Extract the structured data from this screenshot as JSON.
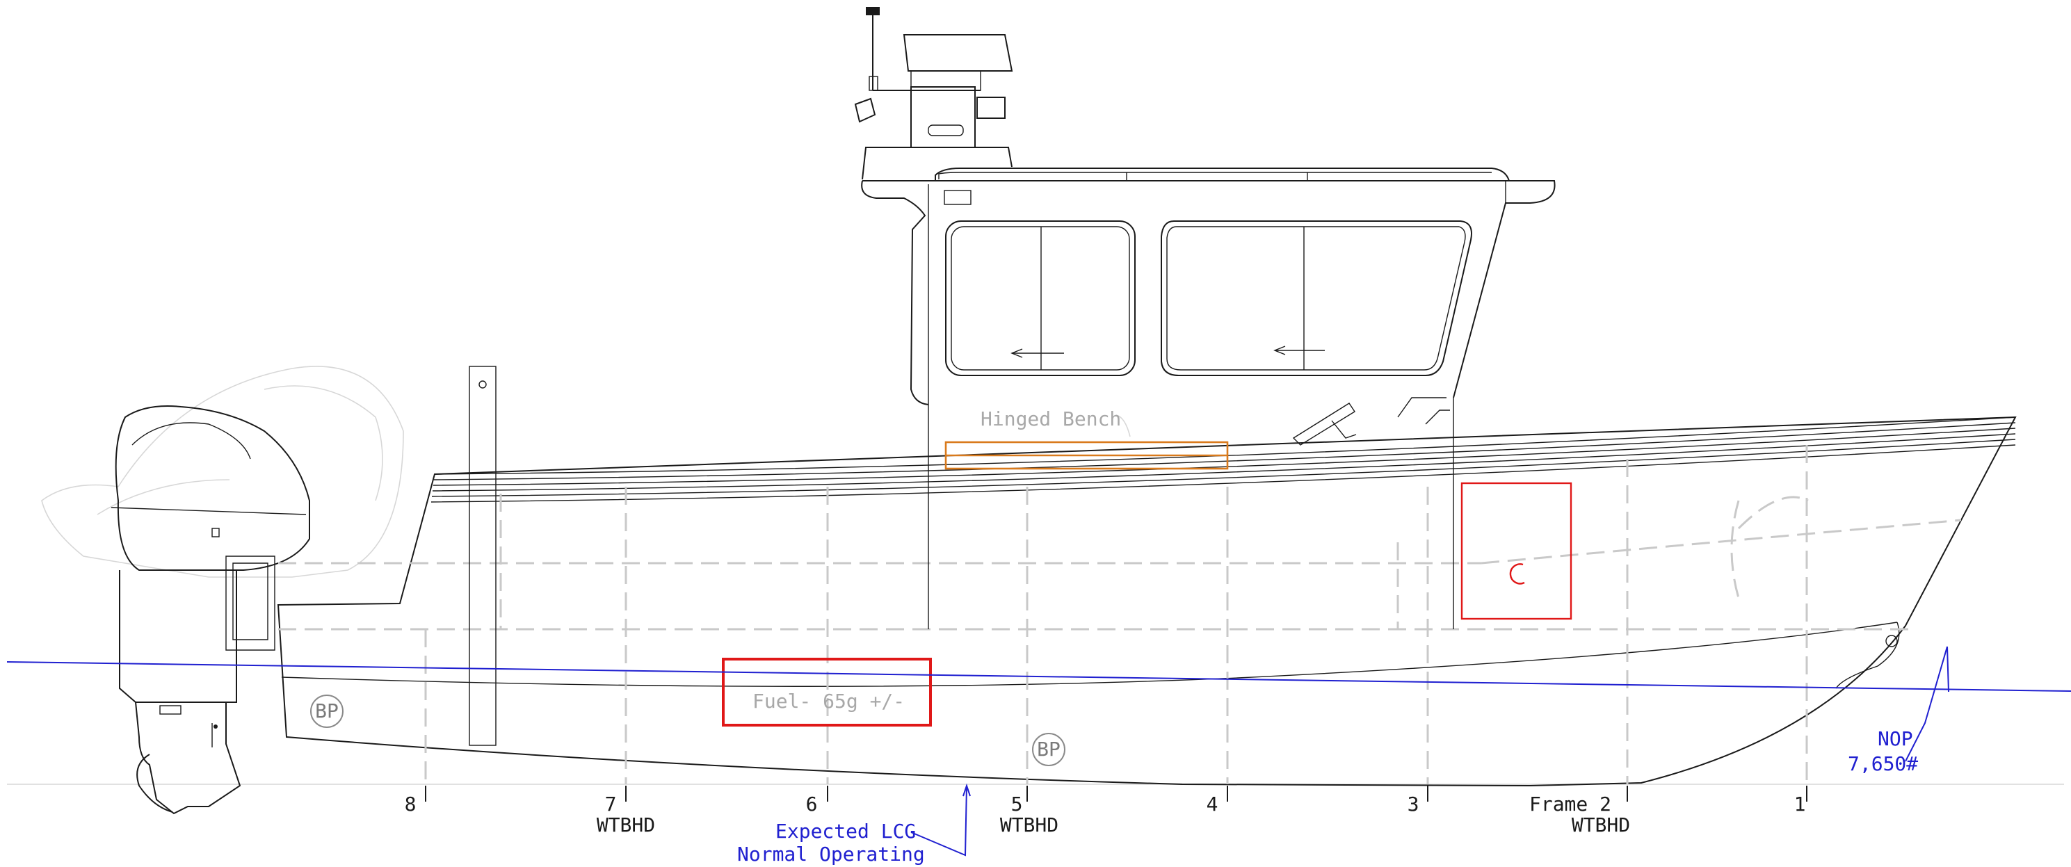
{
  "frames": [
    {
      "number": "8",
      "bulkhead": ""
    },
    {
      "number": "7",
      "bulkhead": "WTBHD"
    },
    {
      "number": "6",
      "bulkhead": ""
    },
    {
      "number": "5",
      "bulkhead": "WTBHD"
    },
    {
      "number": "4",
      "bulkhead": ""
    },
    {
      "number": "3",
      "bulkhead": ""
    },
    {
      "number": "Frame 2",
      "bulkhead": "WTBHD"
    },
    {
      "number": "1",
      "bulkhead": ""
    }
  ],
  "labels": {
    "fuel_tank": "Fuel- 65g +/-",
    "hinged_bench": "Hinged Bench",
    "bp_marker_aft": "BP",
    "bp_marker_fwd": "BP",
    "lcg_line1": "Expected LCG",
    "lcg_line2": "Normal Operating",
    "nop_label": "NOP",
    "nop_weight": "7,650#"
  },
  "colors": {
    "outline": "#1a1a1a",
    "waterline": "#2020d0",
    "fuel_tank": "#e01818",
    "bench": "#d97a1c",
    "hidden_lines": "#c9c9c9"
  }
}
